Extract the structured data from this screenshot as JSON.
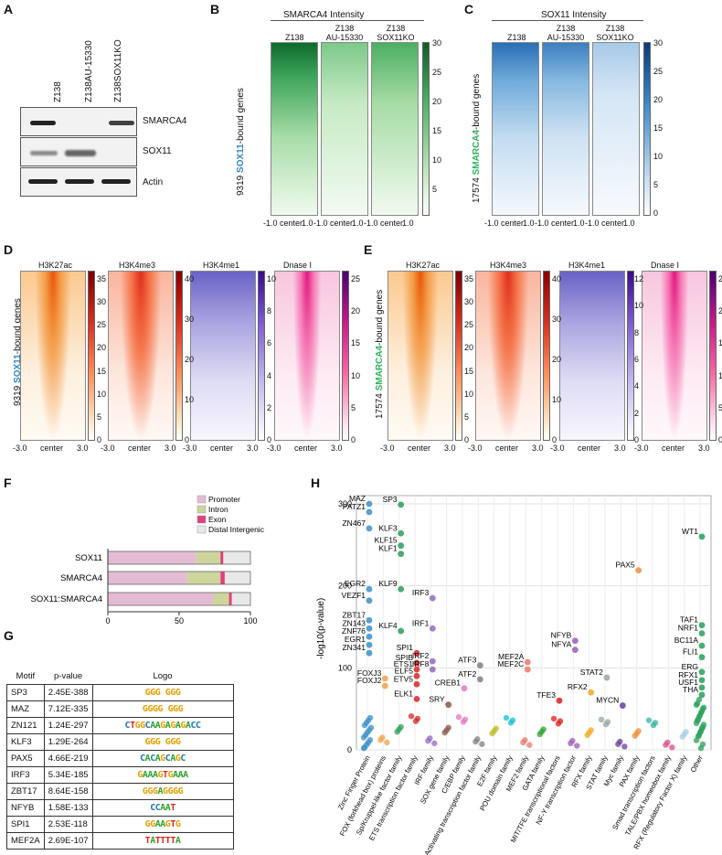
{
  "panels": {
    "A": "A",
    "B": "B",
    "C": "C",
    "D": "D",
    "E": "E",
    "F": "F",
    "G": "G",
    "H": "H"
  },
  "panelA": {
    "lanes": [
      "Z138",
      "Z138AU-15330",
      "Z138SOX11KO"
    ],
    "rows": [
      "SMARCA4",
      "SOX11",
      "Actin"
    ]
  },
  "panelB": {
    "title": "SMARCA4 Intensity",
    "columns": [
      "Z138",
      "Z138\nAU-15330",
      "Z138\nSOX11KO"
    ],
    "ylabel_prefix": "9319 ",
    "ylabel_colored": "SOX11",
    "ylabel_suffix": "-bound genes",
    "colorbar_ticks": [
      "30",
      "25",
      "20",
      "15",
      "10",
      "5"
    ],
    "x_ticks": [
      "-1.0",
      "center",
      "1.0"
    ]
  },
  "panelC": {
    "title": "SOX11 Intensity",
    "columns": [
      "Z138",
      "Z138\nAU-15330",
      "Z138\nSOX11KO"
    ],
    "ylabel_prefix": "17574 ",
    "ylabel_colored": "SMARCA4",
    "ylabel_suffix": "-bound genes",
    "colorbar_ticks": [
      "30",
      "25",
      "20",
      "15",
      "10",
      "5",
      "0"
    ],
    "x_ticks": [
      "-1.0",
      "center",
      "1.0"
    ]
  },
  "panelD": {
    "columns": [
      "H3K27ac",
      "H3K4me3",
      "H3K4me1",
      "Dnase I"
    ],
    "ylabel_prefix": "9319 ",
    "ylabel_colored": "SOX11",
    "ylabel_suffix": "-bound genes",
    "cb1": [
      "35",
      "30",
      "25",
      "20",
      "15",
      "10",
      "5",
      "0"
    ],
    "cb2": [
      "40",
      "30",
      "20",
      "10",
      "0"
    ],
    "cb3": [
      "10",
      "8",
      "6",
      "4",
      "2",
      "0"
    ],
    "cb4": [
      "25",
      "20",
      "15",
      "10",
      "5",
      "0"
    ],
    "x_ticks": [
      "-3.0",
      "center",
      "3.0"
    ]
  },
  "panelE": {
    "columns": [
      "H3K27ac",
      "H3K4me3",
      "H3K4me1",
      "Dnase I"
    ],
    "ylabel_prefix": "17574 ",
    "ylabel_colored": "SMARCA4",
    "ylabel_suffix": "-bound genes",
    "cb1": [
      "35",
      "30",
      "25",
      "20",
      "15",
      "10",
      "5",
      "0"
    ],
    "cb2": [
      "40",
      "30",
      "20",
      "10",
      "0"
    ],
    "cb3": [
      "12",
      "10",
      "8",
      "6",
      "4",
      "2",
      "0"
    ],
    "cb4": [
      "25",
      "20",
      "15",
      "10",
      "5",
      "0"
    ],
    "x_ticks": [
      "-3.0",
      "center",
      "3.0"
    ]
  },
  "colors": {
    "sox11_blue": "#2f86c6",
    "smarca4_green": "#2db35b",
    "promoter": "#e3bcd3",
    "intron": "#cdd59b",
    "exon": "#e0407d",
    "distal": "#e8e8e8"
  },
  "chart_data": [
    {
      "type": "bar",
      "stacked": true,
      "orientation": "horizontal",
      "categories": [
        "SOX11",
        "SMARCA4",
        "SOX11:SMARCA4"
      ],
      "series": [
        {
          "name": "Promoter",
          "values": [
            62,
            56,
            74
          ]
        },
        {
          "name": "Intron",
          "values": [
            17,
            23,
            11
          ]
        },
        {
          "name": "Exon",
          "values": [
            2,
            3,
            2
          ]
        },
        {
          "name": "Distal Intergenic",
          "values": [
            19,
            18,
            13
          ]
        }
      ],
      "x_ticks": [
        "0",
        "50",
        "100"
      ],
      "xlim": [
        0,
        100
      ],
      "legend": "top-right"
    },
    {
      "type": "table",
      "headers": [
        "Motif",
        "p-value",
        "Logo"
      ],
      "rows": [
        {
          "motif": "SP3",
          "p": "2.45E-388",
          "logo": "GGG GGG"
        },
        {
          "motif": "MAZ",
          "p": "7.12E-335",
          "logo": "GGGG GGG"
        },
        {
          "motif": "ZN121",
          "p": "1.24E-297",
          "logo": "CTGGCAAGAGAGACC"
        },
        {
          "motif": "KLF3",
          "p": "1.29E-264",
          "logo": "GGG GGG"
        },
        {
          "motif": "PAX5",
          "p": "4.66E-219",
          "logo": "CACAGCAGC"
        },
        {
          "motif": "IRF3",
          "p": "5.34E-185",
          "logo": "GAAAGTGAAA"
        },
        {
          "motif": "ZBT17",
          "p": "8.64E-158",
          "logo": "GGGAGGGG"
        },
        {
          "motif": "NFYB",
          "p": "1.58E-133",
          "logo": "CCAAT"
        },
        {
          "motif": "SPI1",
          "p": "2.53E-118",
          "logo": "GGAAGTG"
        },
        {
          "motif": "MEF2A",
          "p": "2.69E-107",
          "logo": "TATTTTA"
        }
      ]
    },
    {
      "type": "scatter",
      "ylabel": "-log10(p-value)",
      "ylim": [
        0,
        310
      ],
      "y_ticks": [
        "0",
        "100",
        "200",
        "300"
      ],
      "grid": true,
      "categories": [
        "Zinc Finger Protein",
        "FOX (forkhead box)  proteins",
        "Sp/Kruppel-like factor family",
        "ETS transcription factor family",
        "IRF family",
        "SOX gene family",
        "C/EBP family",
        "Activating transcription factor family",
        "E2F family",
        "POU domain family",
        "MEF2 family",
        "GATA family",
        "MIT/TFE transcriptional factors",
        "NF-Y transcription factor",
        "RFX family",
        "STAT family",
        "Myc family",
        "PAX family",
        "Smad transcription factors",
        "TALE/PBX homeobox  family",
        "RFX (Regulatory Factor X) family",
        "Other"
      ],
      "labeled_points": [
        {
          "label": "MAZ",
          "cat": 0,
          "y": 300
        },
        {
          "label": "PATZ1",
          "cat": 0,
          "y": 290
        },
        {
          "label": "ZN467",
          "cat": 0,
          "y": 270
        },
        {
          "label": "EGR2",
          "cat": 0,
          "y": 196
        },
        {
          "label": "VEZF1",
          "cat": 0,
          "y": 182
        },
        {
          "label": "ZBT17",
          "cat": 0,
          "y": 158
        },
        {
          "label": "ZN143",
          "cat": 0,
          "y": 148
        },
        {
          "label": "ZNF76",
          "cat": 0,
          "y": 138
        },
        {
          "label": "EGR1",
          "cat": 0,
          "y": 128
        },
        {
          "label": "ZN341",
          "cat": 0,
          "y": 118
        },
        {
          "label": "FOXJ3",
          "cat": 1,
          "y": 87
        },
        {
          "label": "FOXJ2",
          "cat": 1,
          "y": 78
        },
        {
          "label": "SP3",
          "cat": 2,
          "y": 299
        },
        {
          "label": "KLF3",
          "cat": 2,
          "y": 264
        },
        {
          "label": "KLF15",
          "cat": 2,
          "y": 249
        },
        {
          "label": "KLF1",
          "cat": 2,
          "y": 239
        },
        {
          "label": "KLF9",
          "cat": 2,
          "y": 196
        },
        {
          "label": "KLF4",
          "cat": 2,
          "y": 145
        },
        {
          "label": "SPI1",
          "cat": 3,
          "y": 118
        },
        {
          "label": "SPIB",
          "cat": 3,
          "y": 106
        },
        {
          "label": "ETS1",
          "cat": 3,
          "y": 98
        },
        {
          "label": "ELF5",
          "cat": 3,
          "y": 90
        },
        {
          "label": "ETV5",
          "cat": 3,
          "y": 80
        },
        {
          "label": "ELK1",
          "cat": 3,
          "y": 62
        },
        {
          "label": "IRF3",
          "cat": 4,
          "y": 185
        },
        {
          "label": "IRF1",
          "cat": 4,
          "y": 148
        },
        {
          "label": "IRF2",
          "cat": 4,
          "y": 108
        },
        {
          "label": "IRF8",
          "cat": 4,
          "y": 98
        },
        {
          "label": "CREB1",
          "cat": 6,
          "y": 75
        },
        {
          "label": "SRY",
          "cat": 5,
          "y": 55
        },
        {
          "label": "ATF3",
          "cat": 7,
          "y": 103
        },
        {
          "label": "ATF2",
          "cat": 7,
          "y": 86
        },
        {
          "label": "MEF2A",
          "cat": 10,
          "y": 107
        },
        {
          "label": "MEF2C",
          "cat": 10,
          "y": 98
        },
        {
          "label": "TFE3",
          "cat": 12,
          "y": 60
        },
        {
          "label": "NFYB",
          "cat": 13,
          "y": 133
        },
        {
          "label": "NFYA",
          "cat": 13,
          "y": 122
        },
        {
          "label": "RFX2",
          "cat": 14,
          "y": 70
        },
        {
          "label": "STAT2",
          "cat": 15,
          "y": 88
        },
        {
          "label": "MYCN",
          "cat": 16,
          "y": 54
        },
        {
          "label": "PAX5",
          "cat": 17,
          "y": 219
        },
        {
          "label": "WT1",
          "cat": 21,
          "y": 260
        },
        {
          "label": "TAF1",
          "cat": 21,
          "y": 152
        },
        {
          "label": "NRF1",
          "cat": 21,
          "y": 142
        },
        {
          "label": "BC11A",
          "cat": 21,
          "y": 127
        },
        {
          "label": "FLI1",
          "cat": 21,
          "y": 113
        },
        {
          "label": "ERG",
          "cat": 21,
          "y": 95
        },
        {
          "label": "RFX1",
          "cat": 21,
          "y": 85
        },
        {
          "label": "USF1",
          "cat": 21,
          "y": 76
        },
        {
          "label": "THA",
          "cat": 21,
          "y": 67
        }
      ]
    }
  ]
}
